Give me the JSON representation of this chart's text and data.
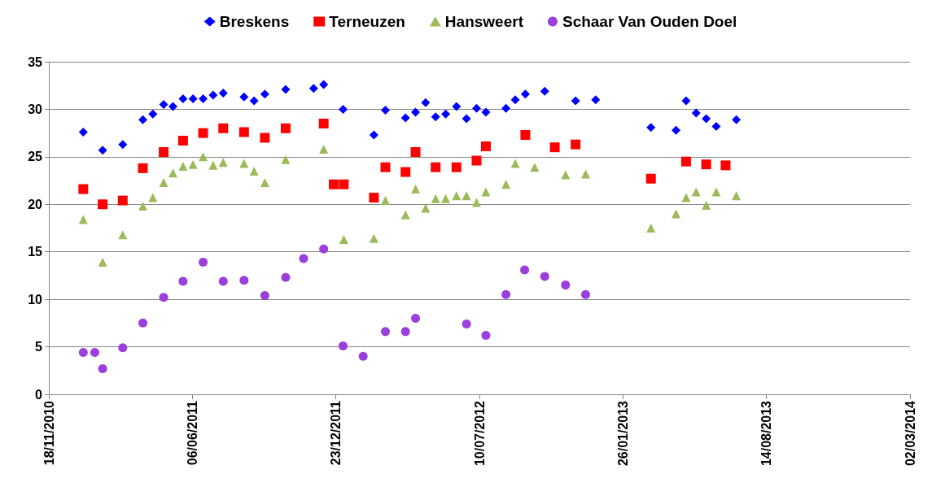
{
  "chart_data": {
    "type": "scatter",
    "legend": "top",
    "grid": "y",
    "xlim": [
      "2010-11-18",
      "2014-03-02"
    ],
    "xticks": [
      {
        "value": "2010-11-18",
        "label": "18/11/2010"
      },
      {
        "value": "2011-06-06",
        "label": "06/06/2011"
      },
      {
        "value": "2011-12-23",
        "label": "23/12/2011"
      },
      {
        "value": "2012-07-10",
        "label": "10/07/2012"
      },
      {
        "value": "2013-01-26",
        "label": "26/01/2013"
      },
      {
        "value": "2013-08-14",
        "label": "14/08/2013"
      },
      {
        "value": "2014-03-02",
        "label": "02/03/2014"
      }
    ],
    "ylim": [
      0,
      35
    ],
    "yticks": [
      0,
      5,
      10,
      15,
      20,
      25,
      30,
      35
    ],
    "series": [
      {
        "name": "Breskens",
        "color": "#0000ff",
        "marker": "diamond",
        "x": [
          "2011-01-05",
          "2011-02-01",
          "2011-03-01",
          "2011-03-29",
          "2011-04-12",
          "2011-04-27",
          "2011-05-10",
          "2011-05-24",
          "2011-06-07",
          "2011-06-21",
          "2011-07-05",
          "2011-07-19",
          "2011-08-17",
          "2011-08-31",
          "2011-09-15",
          "2011-10-14",
          "2011-11-22",
          "2011-12-06",
          "2012-01-02",
          "2012-02-14",
          "2012-03-01",
          "2012-03-29",
          "2012-04-12",
          "2012-04-26",
          "2012-05-10",
          "2012-05-24",
          "2012-06-08",
          "2012-06-22",
          "2012-07-06",
          "2012-07-19",
          "2012-08-16",
          "2012-08-29",
          "2012-09-12",
          "2012-10-09",
          "2012-11-21",
          "2012-12-19",
          "2013-03-06",
          "2013-04-10",
          "2013-04-24",
          "2013-05-08",
          "2013-05-22",
          "2013-06-05",
          "2013-07-03"
        ],
        "values": [
          27.6,
          25.7,
          26.3,
          28.9,
          29.5,
          30.5,
          30.3,
          31.1,
          31.1,
          31.1,
          31.5,
          31.7,
          31.3,
          30.9,
          31.6,
          32.1,
          32.2,
          32.6,
          30.0,
          27.3,
          29.9,
          29.1,
          29.7,
          30.7,
          29.2,
          29.5,
          30.3,
          29.0,
          30.1,
          29.7,
          30.1,
          31.0,
          31.6,
          31.9,
          30.9,
          31.0,
          28.1,
          27.8,
          30.9,
          29.6,
          29.0,
          28.2,
          28.9
        ]
      },
      {
        "name": "Terneuzen",
        "color": "#ff0000",
        "marker": "square",
        "x": [
          "2011-01-05",
          "2011-02-01",
          "2011-03-01",
          "2011-03-29",
          "2011-04-27",
          "2011-05-24",
          "2011-06-21",
          "2011-07-19",
          "2011-08-17",
          "2011-09-15",
          "2011-10-14",
          "2011-12-06",
          "2011-12-20",
          "2012-01-03",
          "2012-02-14",
          "2012-03-01",
          "2012-03-29",
          "2012-04-12",
          "2012-05-10",
          "2012-06-08",
          "2012-07-06",
          "2012-07-19",
          "2012-09-12",
          "2012-10-23",
          "2012-11-21",
          "2013-03-06",
          "2013-04-24",
          "2013-05-22",
          "2013-06-18"
        ],
        "values": [
          21.6,
          20.0,
          20.4,
          23.8,
          25.5,
          26.7,
          27.5,
          28.0,
          27.6,
          27.0,
          28.0,
          28.5,
          22.1,
          22.1,
          20.7,
          23.9,
          23.4,
          25.5,
          23.9,
          23.9,
          24.6,
          26.1,
          27.3,
          26.0,
          26.3,
          22.7,
          24.5,
          24.2,
          24.1
        ]
      },
      {
        "name": "Hansweert",
        "color": "#9bbb59",
        "marker": "triangle",
        "x": [
          "2011-01-05",
          "2011-02-01",
          "2011-03-01",
          "2011-03-29",
          "2011-04-12",
          "2011-04-27",
          "2011-05-10",
          "2011-05-24",
          "2011-06-07",
          "2011-06-21",
          "2011-07-05",
          "2011-07-19",
          "2011-08-17",
          "2011-08-31",
          "2011-09-15",
          "2011-10-14",
          "2011-12-06",
          "2012-01-03",
          "2012-02-14",
          "2012-03-01",
          "2012-03-29",
          "2012-04-12",
          "2012-04-26",
          "2012-05-10",
          "2012-05-24",
          "2012-06-08",
          "2012-06-22",
          "2012-07-06",
          "2012-07-19",
          "2012-08-16",
          "2012-08-29",
          "2012-09-25",
          "2012-11-07",
          "2012-12-05",
          "2013-03-06",
          "2013-04-10",
          "2013-04-24",
          "2013-05-08",
          "2013-05-22",
          "2013-06-05",
          "2013-07-03"
        ],
        "values": [
          18.4,
          13.9,
          16.8,
          19.8,
          20.7,
          22.3,
          23.3,
          24.0,
          24.2,
          25.0,
          24.1,
          24.4,
          24.3,
          23.5,
          22.3,
          24.7,
          25.8,
          16.3,
          16.4,
          20.4,
          18.9,
          21.6,
          19.6,
          20.6,
          20.6,
          20.9,
          20.9,
          20.2,
          21.3,
          22.1,
          24.3,
          23.9,
          23.1,
          23.2,
          17.5,
          19.0,
          20.7,
          21.3,
          19.9,
          21.3,
          20.9
        ]
      },
      {
        "name": "Schaar Van Ouden Doel",
        "color": "#9b3fdc",
        "marker": "circle",
        "x": [
          "2011-01-05",
          "2011-01-21",
          "2011-02-01",
          "2011-03-01",
          "2011-03-29",
          "2011-04-27",
          "2011-05-24",
          "2011-06-21",
          "2011-07-19",
          "2011-08-17",
          "2011-09-15",
          "2011-10-14",
          "2011-11-08",
          "2011-12-06",
          "2012-01-02",
          "2012-01-30",
          "2012-03-01",
          "2012-03-29",
          "2012-04-12",
          "2012-06-22",
          "2012-07-19",
          "2012-08-16",
          "2012-09-11",
          "2012-10-09",
          "2012-11-07",
          "2012-12-05"
        ],
        "values": [
          4.4,
          4.4,
          2.7,
          4.9,
          7.5,
          10.2,
          11.9,
          13.9,
          11.9,
          12.0,
          10.4,
          12.3,
          14.3,
          15.3,
          5.1,
          4.0,
          6.6,
          6.6,
          8.0,
          7.4,
          6.2,
          10.5,
          13.1,
          12.4,
          11.5,
          10.5
        ]
      }
    ]
  }
}
